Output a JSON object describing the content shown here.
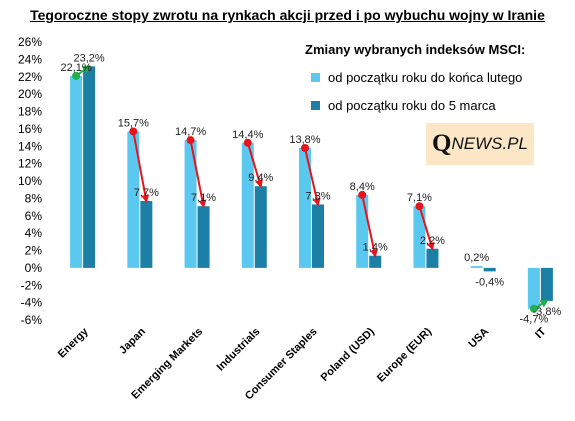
{
  "page": {
    "title": "Tegoroczne stopy zwrotu na rynkach  akcji przed i po wybuchu wojny w Iranie",
    "logo_q": "Q",
    "logo_rest": "NEWS.PL"
  },
  "legend": {
    "title": "Zmiany wybranych indeksów MSCI:",
    "items": [
      {
        "label": "od początku roku do końca lutego",
        "color": "#5bc8f0"
      },
      {
        "label": "od początku roku do 5 marca",
        "color": "#1c7fa6"
      }
    ]
  },
  "chart_data": {
    "type": "bar",
    "categories": [
      "Energy",
      "Japan",
      "Emerging Markets",
      "Industrials",
      "Consumer Staples",
      "Poland (USD)",
      "Europe (EUR)",
      "USA",
      "IT"
    ],
    "series": [
      {
        "name": "od początku roku do końca lutego",
        "values": [
          22.1,
          15.7,
          14.7,
          14.4,
          13.8,
          8.4,
          7.1,
          0.2,
          -4.7
        ],
        "color": "#5bc8f0"
      },
      {
        "name": "od początku roku do 5 marca",
        "values": [
          23.2,
          7.7,
          7.1,
          9.4,
          7.3,
          1.4,
          2.2,
          -0.4,
          -3.8
        ],
        "color": "#1c7fa6"
      }
    ],
    "data_labels": [
      [
        "22,1%",
        "15,7%",
        "14,7%",
        "14,4%",
        "13,8%",
        "8,4%",
        "7,1%",
        "0,2%",
        "-4,7%"
      ],
      [
        "23,2%",
        "7,7%",
        "7,1%",
        "9,4%",
        "7,3%",
        "1,4%",
        "2,2%",
        "-0,4%",
        "-3,8%"
      ]
    ],
    "y_ticks": [
      -6,
      -4,
      -2,
      0,
      2,
      4,
      6,
      8,
      10,
      12,
      14,
      16,
      18,
      20,
      22,
      24,
      26
    ],
    "y_tick_labels": [
      "-6%",
      "-4%",
      "-2%",
      "0%",
      "2%",
      "4%",
      "6%",
      "8%",
      "10%",
      "12%",
      "14%",
      "16%",
      "18%",
      "20%",
      "22%",
      "24%",
      "26%"
    ],
    "ylim": [
      -6,
      26
    ],
    "grid": false,
    "legend_position": "top-right",
    "arrow_colors": {
      "up": "#21b04b",
      "down": "#e8141c"
    }
  }
}
